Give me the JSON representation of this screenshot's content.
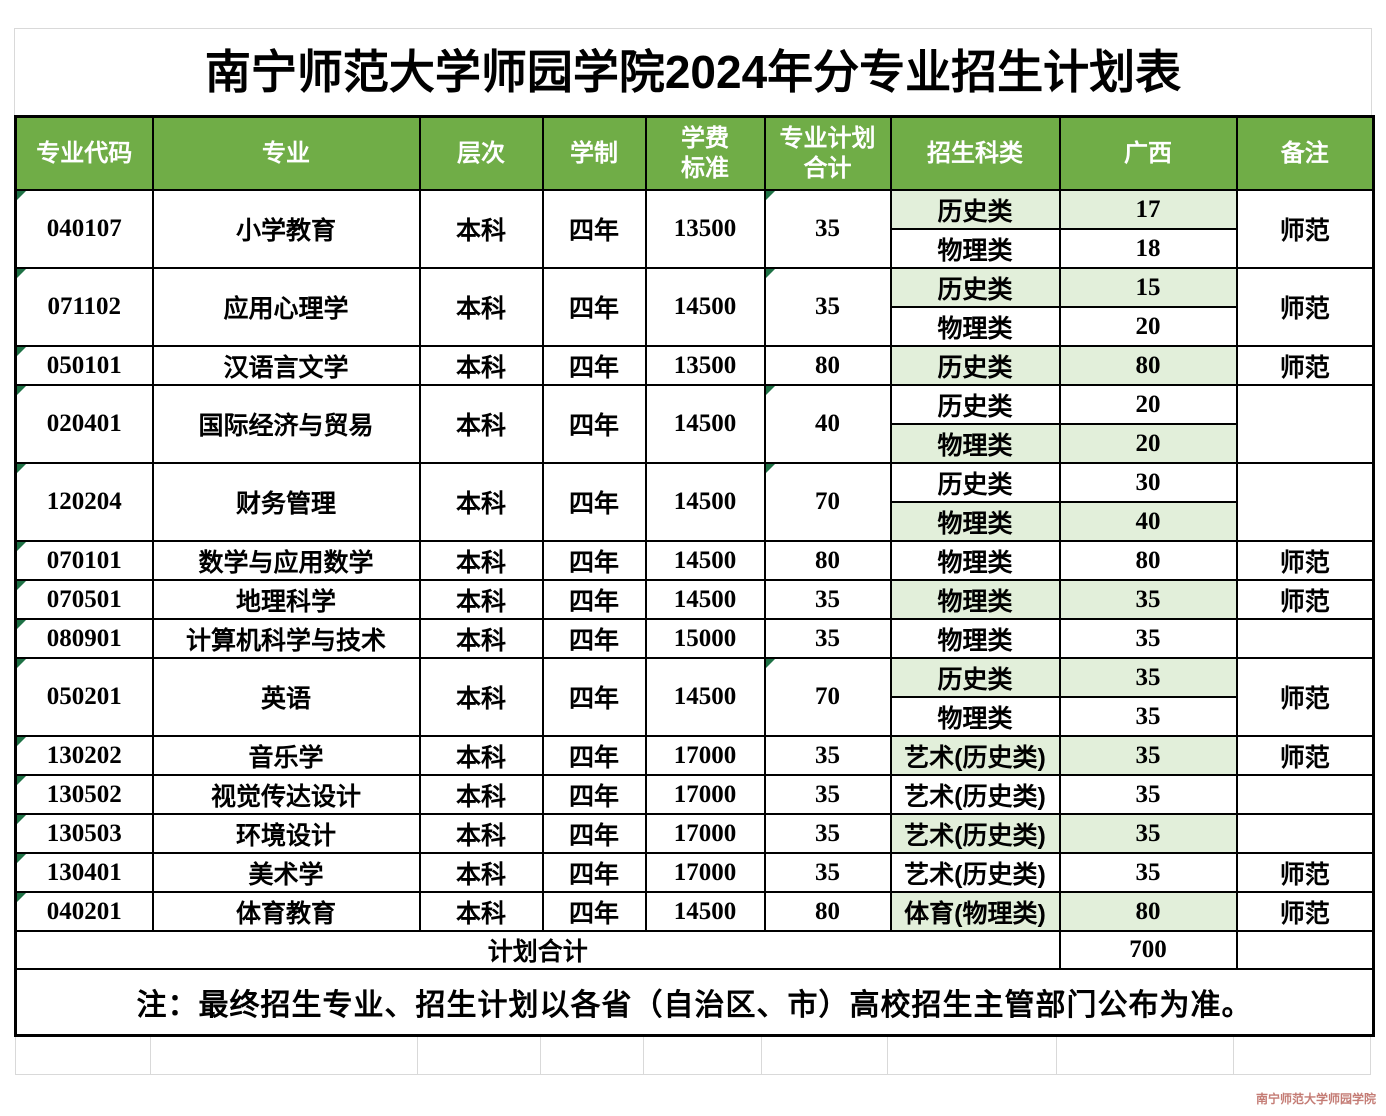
{
  "title": "南宁师范大学师园学院2024年分专业招生计划表",
  "columns": [
    {
      "label": "专业代码"
    },
    {
      "label": "专业"
    },
    {
      "label": "层次"
    },
    {
      "label": "学制"
    },
    {
      "label": "学费\n标准"
    },
    {
      "label": "专业计划\n合计"
    },
    {
      "label": "招生科类"
    },
    {
      "label": "广西"
    },
    {
      "label": "备注"
    }
  ],
  "rows": [
    {
      "code": "040107",
      "major": "小学教育",
      "level": "本科",
      "duration": "四年",
      "tuition": "13500",
      "plan_total": "35",
      "remark": "师范",
      "subrows": [
        {
          "category": "历史类",
          "guangxi": "17"
        },
        {
          "category": "物理类",
          "guangxi": "18"
        }
      ]
    },
    {
      "code": "071102",
      "major": "应用心理学",
      "level": "本科",
      "duration": "四年",
      "tuition": "14500",
      "plan_total": "35",
      "remark": "师范",
      "subrows": [
        {
          "category": "历史类",
          "guangxi": "15"
        },
        {
          "category": "物理类",
          "guangxi": "20"
        }
      ]
    },
    {
      "code": "050101",
      "major": "汉语言文学",
      "level": "本科",
      "duration": "四年",
      "tuition": "13500",
      "plan_total": "80",
      "remark": "师范",
      "subrows": [
        {
          "category": "历史类",
          "guangxi": "80"
        }
      ]
    },
    {
      "code": "020401",
      "major": "国际经济与贸易",
      "level": "本科",
      "duration": "四年",
      "tuition": "14500",
      "plan_total": "40",
      "remark": "",
      "subrows": [
        {
          "category": "历史类",
          "guangxi": "20"
        },
        {
          "category": "物理类",
          "guangxi": "20"
        }
      ]
    },
    {
      "code": "120204",
      "major": "财务管理",
      "level": "本科",
      "duration": "四年",
      "tuition": "14500",
      "plan_total": "70",
      "remark": "",
      "subrows": [
        {
          "category": "历史类",
          "guangxi": "30"
        },
        {
          "category": "物理类",
          "guangxi": "40"
        }
      ]
    },
    {
      "code": "070101",
      "major": "数学与应用数学",
      "level": "本科",
      "duration": "四年",
      "tuition": "14500",
      "plan_total": "80",
      "remark": "师范",
      "subrows": [
        {
          "category": "物理类",
          "guangxi": "80"
        }
      ]
    },
    {
      "code": "070501",
      "major": "地理科学",
      "level": "本科",
      "duration": "四年",
      "tuition": "14500",
      "plan_total": "35",
      "remark": "师范",
      "subrows": [
        {
          "category": "物理类",
          "guangxi": "35"
        }
      ]
    },
    {
      "code": "080901",
      "major": "计算机科学与技术",
      "level": "本科",
      "duration": "四年",
      "tuition": "15000",
      "plan_total": "35",
      "remark": "",
      "subrows": [
        {
          "category": "物理类",
          "guangxi": "35"
        }
      ]
    },
    {
      "code": "050201",
      "major": "英语",
      "level": "本科",
      "duration": "四年",
      "tuition": "14500",
      "plan_total": "70",
      "remark": "师范",
      "subrows": [
        {
          "category": "历史类",
          "guangxi": "35"
        },
        {
          "category": "物理类",
          "guangxi": "35"
        }
      ]
    },
    {
      "code": "130202",
      "major": "音乐学",
      "level": "本科",
      "duration": "四年",
      "tuition": "17000",
      "plan_total": "35",
      "remark": "师范",
      "subrows": [
        {
          "category": "艺术(历史类)",
          "guangxi": "35"
        }
      ]
    },
    {
      "code": "130502",
      "major": "视觉传达设计",
      "level": "本科",
      "duration": "四年",
      "tuition": "17000",
      "plan_total": "35",
      "remark": "",
      "subrows": [
        {
          "category": "艺术(历史类)",
          "guangxi": "35"
        }
      ]
    },
    {
      "code": "130503",
      "major": "环境设计",
      "level": "本科",
      "duration": "四年",
      "tuition": "17000",
      "plan_total": "35",
      "remark": "",
      "subrows": [
        {
          "category": "艺术(历史类)",
          "guangxi": "35"
        }
      ]
    },
    {
      "code": "130401",
      "major": "美术学",
      "level": "本科",
      "duration": "四年",
      "tuition": "17000",
      "plan_total": "35",
      "remark": "师范",
      "subrows": [
        {
          "category": "艺术(历史类)",
          "guangxi": "35"
        }
      ]
    },
    {
      "code": "040201",
      "major": "体育教育",
      "level": "本科",
      "duration": "四年",
      "tuition": "14500",
      "plan_total": "80",
      "remark": "师范",
      "subrows": [
        {
          "category": "体育(物理类)",
          "guangxi": "80"
        }
      ]
    }
  ],
  "summary_row": {
    "label": "计划合计",
    "guangxi_total": "700",
    "remark": ""
  },
  "note": "注：最终招生专业、招生计划以各省（自治区、市）高校招生主管部门公布为准。",
  "watermark": "南宁师范大学师园学院",
  "colors": {
    "header_bg": "#70AD47",
    "header_text": "#FFFFFF",
    "subrow_alt_bg": "#E2EFDA",
    "border": "#000000",
    "grid_line": "#D9D9D9",
    "indicator_triangle": "#1E7145",
    "watermark_text": "#C47C75"
  },
  "icons": {
    "corner_indicator": "excel-corner-indicator-triangle"
  }
}
